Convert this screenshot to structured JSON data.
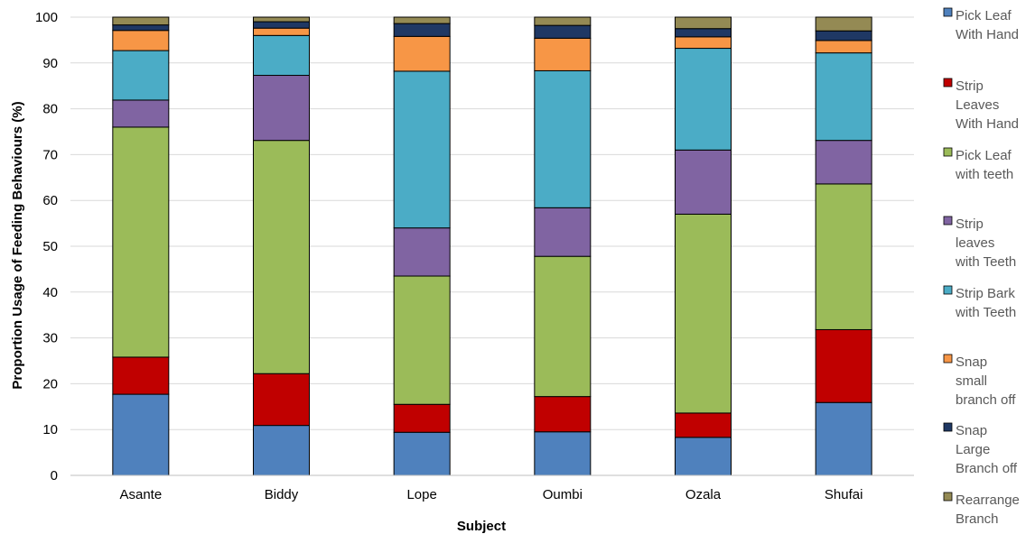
{
  "chart_data": {
    "type": "bar",
    "stacked": true,
    "xlabel": "Subject",
    "ylabel": "Proportion Usage of Feeding Behaviours (%)",
    "ylim": [
      0,
      100
    ],
    "yticks": [
      0,
      10,
      20,
      30,
      40,
      50,
      60,
      70,
      80,
      90,
      100
    ],
    "grid": true,
    "legend_position": "right",
    "categories": [
      "Asante",
      "Biddy",
      "Lope",
      "Oumbi",
      "Ozala",
      "Shufai"
    ],
    "series": [
      {
        "name": "Pick Leaf With Hand",
        "legend_lines": [
          "Pick Leaf",
          "With Hand"
        ],
        "color": "#4f81bd",
        "values": [
          17.7,
          10.9,
          9.4,
          9.5,
          8.3,
          15.9
        ]
      },
      {
        "name": "Strip Leaves With Hand",
        "legend_lines": [
          "Strip",
          "Leaves",
          "With Hand"
        ],
        "color": "#c00000",
        "values": [
          8.1,
          11.3,
          6.1,
          7.7,
          5.3,
          15.9
        ]
      },
      {
        "name": "Pick Leaf with teeth",
        "legend_lines": [
          "Pick Leaf",
          "with teeth"
        ],
        "color": "#9bbb59",
        "values": [
          50.2,
          50.9,
          28.0,
          30.6,
          43.4,
          31.8
        ]
      },
      {
        "name": "Strip leaves with Teeth",
        "legend_lines": [
          "Strip",
          "leaves",
          "with Teeth"
        ],
        "color": "#8064a2",
        "values": [
          5.9,
          14.2,
          10.5,
          10.6,
          14.0,
          9.5
        ]
      },
      {
        "name": "Strip Bark with Teeth",
        "legend_lines": [
          "Strip Bark",
          "with Teeth"
        ],
        "color": "#4bacc6",
        "values": [
          10.8,
          8.7,
          34.2,
          29.9,
          22.2,
          19.1
        ]
      },
      {
        "name": "Snap small branch off",
        "legend_lines": [
          "Snap",
          "small",
          "branch off"
        ],
        "color": "#f79646",
        "values": [
          4.4,
          1.6,
          7.6,
          7.1,
          2.5,
          2.7
        ]
      },
      {
        "name": "Snap Large Branch off",
        "legend_lines": [
          "Snap",
          "Large",
          "Branch off"
        ],
        "color": "#1f3864",
        "values": [
          1.2,
          1.4,
          2.8,
          2.8,
          1.8,
          2.1
        ]
      },
      {
        "name": "Rearrange Branch",
        "legend_lines": [
          "Rearrange",
          "Branch"
        ],
        "color": "#948a54",
        "values": [
          1.7,
          1.0,
          1.4,
          1.8,
          2.5,
          3.0
        ]
      }
    ]
  }
}
